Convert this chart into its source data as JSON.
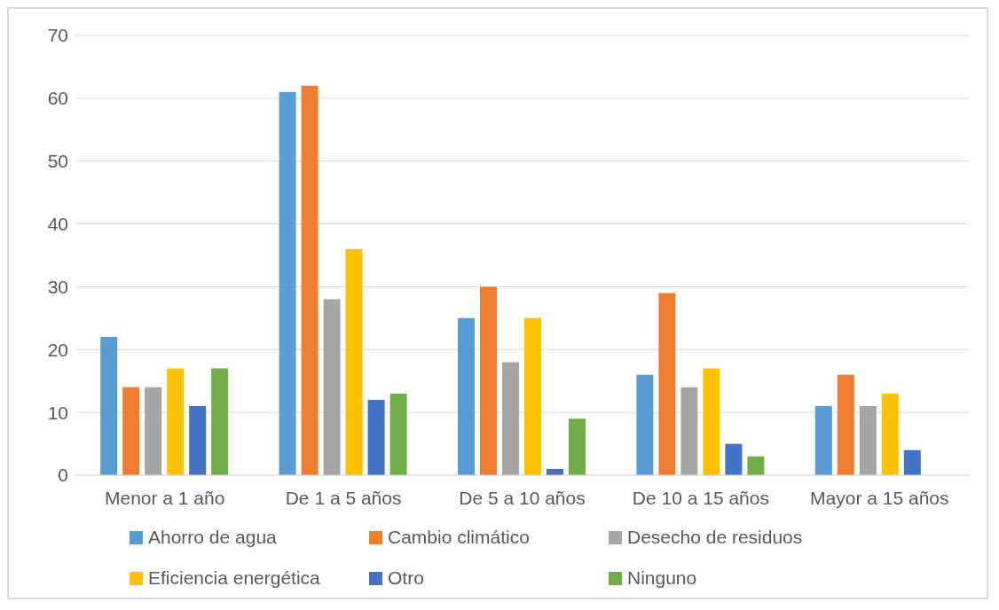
{
  "chart_data": {
    "type": "bar",
    "categories": [
      "Menor a 1 año",
      "De 1 a 5 años",
      "De 5 a 10 años",
      "De 10 a 15 años",
      "Mayor a 15 años"
    ],
    "series": [
      {
        "name": "Ahorro de agua",
        "color": "#5b9bd5",
        "values": [
          22,
          61,
          25,
          16,
          11
        ]
      },
      {
        "name": "Cambio climático",
        "color": "#ed7d31",
        "values": [
          14,
          62,
          30,
          29,
          16
        ]
      },
      {
        "name": "Desecho de residuos",
        "color": "#a5a5a5",
        "values": [
          14,
          28,
          18,
          14,
          11
        ]
      },
      {
        "name": "Eficiencia energética",
        "color": "#ffc000",
        "values": [
          17,
          36,
          25,
          17,
          13
        ]
      },
      {
        "name": "Otro",
        "color": "#4472c4",
        "values": [
          11,
          12,
          1,
          5,
          4
        ]
      },
      {
        "name": "Ninguno",
        "color": "#70ad47",
        "values": [
          17,
          13,
          9,
          3,
          0
        ]
      }
    ],
    "ylim": [
      0,
      70
    ],
    "yticks": [
      0,
      10,
      20,
      30,
      40,
      50,
      60,
      70
    ],
    "grid": "y",
    "legend": "bottom"
  }
}
